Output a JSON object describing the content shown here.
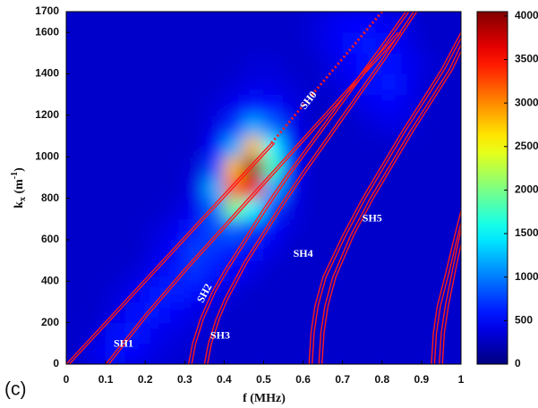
{
  "chart_data": {
    "type": "heatmap",
    "panel_label": "(c)",
    "xlabel": "f (MHz)",
    "ylabel": [
      "k",
      "x",
      " (m",
      "-1",
      ")"
    ],
    "xlim": [
      0,
      1
    ],
    "ylim": [
      0,
      1700
    ],
    "xticks": [
      0,
      0.1,
      0.2,
      0.3,
      0.4,
      0.5,
      0.6,
      0.7,
      0.8,
      0.9,
      1
    ],
    "yticks": [
      0,
      200,
      400,
      600,
      800,
      1000,
      1200,
      1400,
      1600,
      1700
    ],
    "clim": [
      0,
      4050
    ],
    "cticks": [
      0,
      500,
      1000,
      1500,
      2000,
      2500,
      3000,
      3500,
      4000
    ],
    "colormap": "jet",
    "z": [
      [
        300,
        450,
        550,
        500,
        400,
        350,
        300,
        300,
        300,
        300,
        300,
        300,
        300,
        300,
        300,
        300,
        300,
        300,
        300,
        300
      ],
      [
        300,
        350,
        550,
        600,
        450,
        400,
        350,
        300,
        300,
        300,
        300,
        300,
        300,
        300,
        300,
        300,
        300,
        300,
        300,
        300
      ],
      [
        300,
        300,
        400,
        550,
        600,
        500,
        400,
        350,
        300,
        300,
        300,
        300,
        300,
        300,
        300,
        300,
        300,
        300,
        300,
        300
      ],
      [
        300,
        300,
        350,
        450,
        600,
        650,
        550,
        450,
        350,
        300,
        300,
        300,
        300,
        300,
        300,
        300,
        300,
        300,
        300,
        300
      ],
      [
        300,
        300,
        300,
        350,
        450,
        600,
        700,
        600,
        500,
        400,
        300,
        300,
        300,
        300,
        300,
        300,
        300,
        300,
        300,
        300
      ],
      [
        300,
        300,
        300,
        300,
        400,
        500,
        750,
        700,
        600,
        550,
        400,
        300,
        300,
        300,
        300,
        300,
        300,
        300,
        300,
        300
      ],
      [
        300,
        300,
        300,
        300,
        350,
        450,
        600,
        800,
        900,
        700,
        500,
        350,
        300,
        300,
        300,
        300,
        300,
        300,
        300,
        300
      ],
      [
        300,
        300,
        300,
        300,
        300,
        350,
        450,
        900,
        2000,
        1500,
        700,
        400,
        300,
        300,
        300,
        300,
        300,
        300,
        300,
        300
      ],
      [
        300,
        300,
        300,
        300,
        300,
        300,
        400,
        1200,
        3200,
        3600,
        1200,
        450,
        300,
        300,
        300,
        300,
        300,
        300,
        300,
        300
      ],
      [
        300,
        300,
        300,
        300,
        300,
        300,
        350,
        800,
        2800,
        4000,
        1800,
        500,
        300,
        300,
        300,
        300,
        300,
        300,
        300,
        300
      ],
      [
        300,
        300,
        300,
        300,
        300,
        300,
        300,
        500,
        1200,
        2800,
        1500,
        500,
        300,
        300,
        300,
        300,
        300,
        300,
        300,
        300
      ],
      [
        300,
        300,
        300,
        300,
        300,
        300,
        300,
        400,
        700,
        1200,
        900,
        450,
        300,
        300,
        300,
        350,
        400,
        350,
        300,
        300
      ],
      [
        300,
        300,
        300,
        300,
        300,
        300,
        300,
        350,
        450,
        600,
        550,
        400,
        300,
        300,
        350,
        450,
        500,
        400,
        300,
        300
      ],
      [
        300,
        300,
        300,
        300,
        300,
        300,
        300,
        300,
        350,
        400,
        400,
        350,
        300,
        350,
        450,
        550,
        600,
        450,
        300,
        300
      ],
      [
        300,
        300,
        300,
        300,
        300,
        300,
        300,
        300,
        300,
        350,
        350,
        300,
        300,
        400,
        500,
        600,
        550,
        450,
        350,
        300
      ],
      [
        300,
        300,
        300,
        300,
        300,
        300,
        300,
        300,
        300,
        300,
        300,
        300,
        350,
        450,
        550,
        600,
        500,
        400,
        300,
        300
      ],
      [
        300,
        300,
        300,
        300,
        300,
        300,
        300,
        300,
        300,
        300,
        300,
        300,
        350,
        450,
        500,
        500,
        450,
        350,
        300,
        300
      ]
    ],
    "series": [
      {
        "name": "SH0",
        "color": "#ff1a1a",
        "x": [
          0,
          0.52
        ],
        "y": [
          0,
          1066
        ]
      },
      {
        "color": "#ff1a1a",
        "dashed": true,
        "x": [
          0.52,
          0.8
        ],
        "y": [
          1066,
          1700
        ]
      },
      {
        "name": "SH1",
        "color": "#ff1a1a",
        "x": [
          0.1,
          0.15,
          0.2,
          0.3,
          0.4,
          0.5,
          0.6,
          0.7,
          0.8,
          0.84
        ],
        "y": [
          0,
          120,
          240,
          460,
          670,
          880,
          1090,
          1300,
          1510,
          1600
        ]
      },
      {
        "name": "SH2",
        "color": "#ff1a1a",
        "x": [
          0.31,
          0.32,
          0.34,
          0.37,
          0.4,
          0.45,
          0.5,
          0.55,
          0.6,
          0.7,
          0.8,
          0.86
        ],
        "y": [
          0,
          100,
          220,
          350,
          450,
          600,
          750,
          890,
          1020,
          1280,
          1540,
          1700
        ]
      },
      {
        "name": "SH3",
        "color": "#ff1a1a",
        "x": [
          0.35,
          0.36,
          0.38,
          0.4,
          0.45,
          0.5,
          0.55,
          0.6,
          0.7,
          0.8,
          0.88
        ],
        "y": [
          0,
          100,
          220,
          310,
          490,
          640,
          790,
          930,
          1200,
          1470,
          1700
        ]
      },
      {
        "name": "SH4",
        "color": "#ff1a1a",
        "x": [
          0.615,
          0.62,
          0.63,
          0.65,
          0.7,
          0.75,
          0.8,
          0.85,
          0.9,
          0.95,
          1
        ],
        "y": [
          0,
          150,
          280,
          420,
          620,
          800,
          960,
          1120,
          1270,
          1420,
          1600
        ]
      },
      {
        "name": "SH5",
        "color": "#ff1a1a",
        "x": [
          0.64,
          0.645,
          0.655,
          0.675,
          0.72,
          0.77,
          0.82,
          0.87,
          0.92,
          0.97,
          1
        ],
        "y": [
          0,
          150,
          280,
          420,
          620,
          800,
          960,
          1120,
          1270,
          1420,
          1540
        ]
      },
      {
        "color": "#ff1a1a",
        "x": [
          0.925,
          0.93,
          0.94,
          0.96,
          0.98,
          1
        ],
        "y": [
          0,
          150,
          280,
          430,
          590,
          740
        ]
      },
      {
        "color": "#ff1a1a",
        "x": [
          0.945,
          0.95,
          0.96,
          0.98,
          1
        ],
        "y": [
          0,
          150,
          280,
          470,
          650
        ]
      }
    ]
  }
}
